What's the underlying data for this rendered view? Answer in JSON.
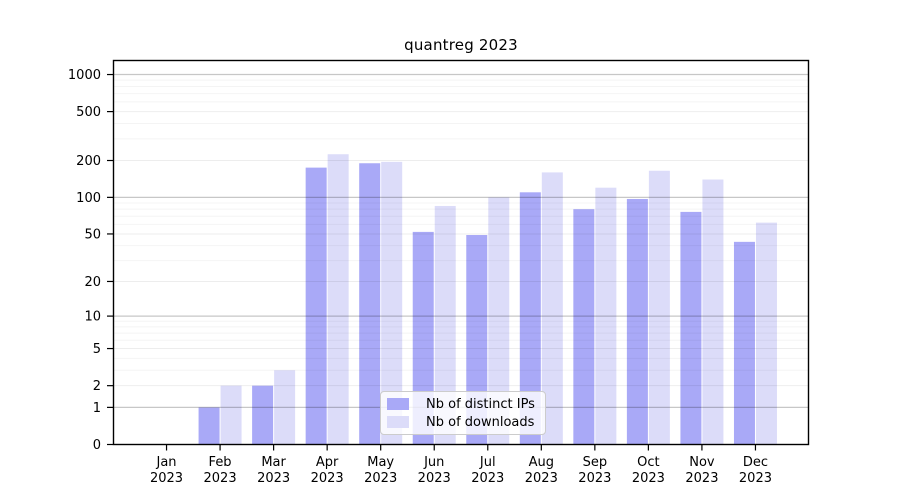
{
  "title": "quantreg 2023",
  "chart_data": {
    "type": "bar",
    "title": "quantreg 2023",
    "x_months": [
      "Jan",
      "Feb",
      "Mar",
      "Apr",
      "May",
      "Jun",
      "Jul",
      "Aug",
      "Sep",
      "Oct",
      "Nov",
      "Dec"
    ],
    "x_year": "2023",
    "series": [
      {
        "name": "Nb of distinct IPs",
        "color": "#a9a9f7",
        "values": [
          0,
          1,
          2,
          175,
          190,
          52,
          49,
          110,
          80,
          97,
          76,
          43
        ]
      },
      {
        "name": "Nb of downloads",
        "color": "#dcdcf9",
        "values": [
          0,
          2,
          3,
          225,
          195,
          85,
          100,
          160,
          120,
          165,
          140,
          62
        ]
      }
    ],
    "y_scale": "log1p",
    "y_ticks": [
      0,
      1,
      2,
      5,
      10,
      20,
      50,
      100,
      200,
      500,
      1000
    ],
    "y_major_gridlines": [
      1,
      10,
      100,
      1000
    ],
    "y_minor_labeled_gridlines": [
      2,
      5,
      20,
      50,
      200,
      500
    ],
    "ylim": [
      0,
      1300
    ],
    "grid": true,
    "legend_position": "lower-center",
    "background_color": "#ffffff",
    "axis_color": "#000000"
  }
}
